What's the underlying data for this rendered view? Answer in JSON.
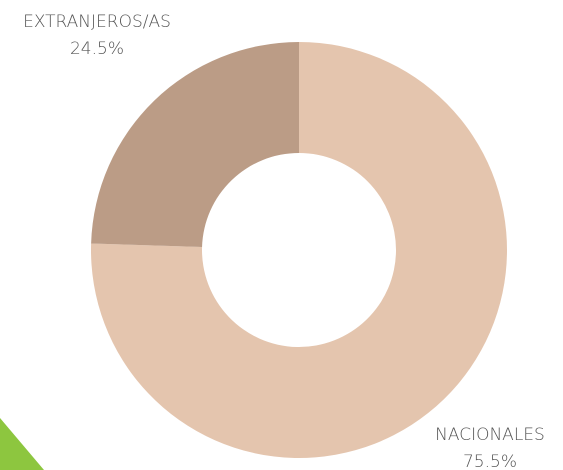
{
  "chart_data": {
    "type": "donut",
    "categories": [
      "NACIONALES",
      "EXTRANJEROS/AS"
    ],
    "values": [
      75.5,
      24.5
    ],
    "value_labels": [
      "75.5%",
      "24.5%"
    ],
    "colors": [
      "#e4c5ae",
      "#bb9c86"
    ]
  }
}
